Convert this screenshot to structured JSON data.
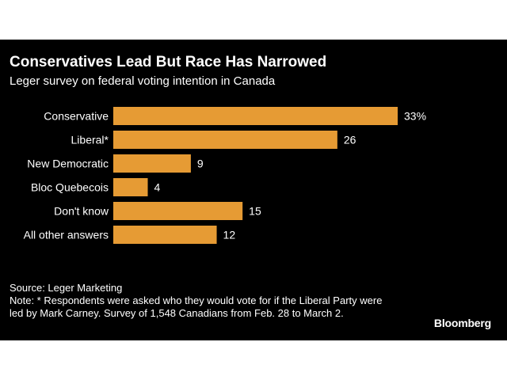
{
  "header": {
    "title": "Conservatives Lead But Race Has Narrowed",
    "subtitle": "Leger survey on federal voting intention in Canada"
  },
  "colors": {
    "background": "#000000",
    "bar": "#e69b34",
    "text": "#ffffff"
  },
  "chart_data": {
    "type": "bar",
    "orientation": "horizontal",
    "title": "Conservatives Lead But Race Has Narrowed",
    "subtitle": "Leger survey on federal voting intention in Canada",
    "categories": [
      "Conservative",
      "Liberal*",
      "New Democratic",
      "Bloc Quebecois",
      "Don't know",
      "All other answers"
    ],
    "values": [
      33,
      26,
      9,
      4,
      15,
      12
    ],
    "value_labels": [
      "33%",
      "26",
      "9",
      "4",
      "15",
      "12"
    ],
    "xlabel": "",
    "ylabel": "",
    "xlim": [
      0,
      33
    ],
    "grid": false,
    "legend": "none"
  },
  "footer": {
    "source": "Source: Leger Marketing",
    "note": "Note: * Respondents were asked who they would vote for if the Liberal Party were led by Mark Carney. Survey of 1,548 Canadians from Feb. 28 to March 2."
  },
  "brand": "Bloomberg"
}
